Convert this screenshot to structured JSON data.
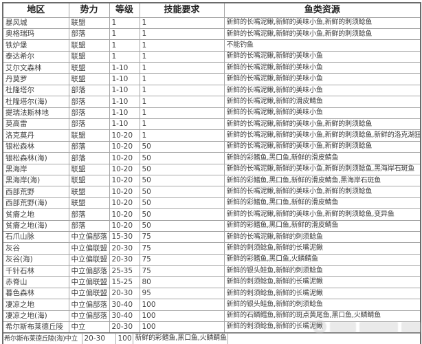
{
  "colors": {
    "background": "#ffffff",
    "grid_line": "#a6a6a6",
    "outer_border": "#6b6b6b",
    "header_text": "#1f1f1f",
    "body_text": "#3f3f3f",
    "watermark": "#c8c8c8"
  },
  "icons": {
    "watermark": "circular-site-logo-with-blurred-text"
  },
  "table": {
    "headers": [
      "地区",
      "势力",
      "等级",
      "技能要求",
      "鱼类资源"
    ],
    "rows": [
      {
        "region": "暴风城",
        "faction": "联盟",
        "level": "1",
        "skill": "1",
        "fish": "新鲜的长嘴泥鳅,新鲜的美味小鱼,新鲜的刺须鲶鱼"
      },
      {
        "region": "奥格瑞玛",
        "faction": "部落",
        "level": "1",
        "skill": "1",
        "fish": "新鲜的长嘴泥鳅,新鲜的美味小鱼,新鲜的刺须鲶鱼"
      },
      {
        "region": "铁炉堡",
        "faction": "联盟",
        "level": "1",
        "skill": "1",
        "fish": "不能钓鱼"
      },
      {
        "region": "泰达希尔",
        "faction": "联盟",
        "level": "1",
        "skill": "1",
        "fish": "新鲜的长嘴泥鳅,新鲜的美味小鱼"
      },
      {
        "region": "艾尔文森林",
        "faction": "联盟",
        "level": "1-10",
        "skill": "1",
        "fish": "新鲜的长嘴泥鳅,新鲜的美味小鱼"
      },
      {
        "region": "丹莫罗",
        "faction": "联盟",
        "level": "1-10",
        "skill": "1",
        "fish": "新鲜的长嘴泥鳅,新鲜的美味小鱼"
      },
      {
        "region": "杜隆塔尔",
        "faction": "部落",
        "level": "1-10",
        "skill": "1",
        "fish": "新鲜的长嘴泥鳅,新鲜的美味小鱼"
      },
      {
        "region": "杜隆塔尔(海)",
        "faction": "部落",
        "level": "1-10",
        "skill": "1",
        "fish": "新鲜的长嘴泥鳅,新鲜的滑皮鲭鱼"
      },
      {
        "region": "提瑞法斯林地",
        "faction": "部落",
        "level": "1-10",
        "skill": "1",
        "fish": "新鲜的长嘴泥鳅,新鲜的美味小鱼"
      },
      {
        "region": "莫高雷",
        "faction": "部落",
        "level": "1-10",
        "skill": "1",
        "fish": "新鲜的长嘴泥鳅,新鲜的美味小鱼,新鲜的刺须鲶鱼"
      },
      {
        "region": "洛克莫丹",
        "faction": "联盟",
        "level": "10-20",
        "skill": "1",
        "fish": "新鲜的长嘴泥鳅,新鲜的美味小鱼,新鲜的刺须鲶鱼,新鲜的洛克湖狂鱼"
      },
      {
        "region": "银松森林",
        "faction": "部落",
        "level": "10-20",
        "skill": "50",
        "fish": "新鲜的长嘴泥鳅,新鲜的美味小鱼,新鲜的刺须鲶鱼"
      },
      {
        "region": "银松森林(海)",
        "faction": "部落",
        "level": "10-20",
        "skill": "50",
        "fish": "新鲜的彩鳍鱼,黑口鱼,新鲜的滑皮鲭鱼"
      },
      {
        "region": "黑海岸",
        "faction": "联盟",
        "level": "10-20",
        "skill": "50",
        "fish": "新鲜的长嘴泥鳅,新鲜的美味小鱼,新鲜的刺须鲶鱼,黑海岸石斑鱼"
      },
      {
        "region": "黑海岸(海)",
        "faction": "联盟",
        "level": "10-20",
        "skill": "50",
        "fish": "新鲜的彩鳍鱼,黑口鱼,新鲜的滑皮鲭鱼,黑海岸石斑鱼"
      },
      {
        "region": "西部荒野",
        "faction": "联盟",
        "level": "10-20",
        "skill": "50",
        "fish": "新鲜的长嘴泥鳅,新鲜的美味小鱼,新鲜的刺须鲶鱼"
      },
      {
        "region": "西部荒野(海)",
        "faction": "联盟",
        "level": "10-20",
        "skill": "50",
        "fish": "新鲜的彩鳍鱼,黑口鱼,新鲜的滑皮鲭鱼"
      },
      {
        "region": "贫瘠之地",
        "faction": "部落",
        "level": "10-20",
        "skill": "50",
        "fish": "新鲜的长嘴泥鳅,新鲜的美味小鱼,新鲜的刺须鲶鱼,变异鱼"
      },
      {
        "region": "贫瘠之地(海)",
        "faction": "部落",
        "level": "10-20",
        "skill": "50",
        "fish": "新鲜的彩鳍鱼,黑口鱼,新鲜的滑皮鲭鱼"
      },
      {
        "region": "石爪山脉",
        "faction": "中立偏部落",
        "level": "15-30",
        "skill": "75",
        "fish": "新鲜的长嘴泥鳅,新鲜的刺须鲶鱼"
      },
      {
        "region": "灰谷",
        "faction": "中立偏联盟",
        "level": "20-30",
        "skill": "75",
        "fish": "新鲜的刺须鲶鱼,新鲜的长嘴泥鳅"
      },
      {
        "region": "灰谷(海)",
        "faction": "中立偏联盟",
        "level": "20-30",
        "skill": "75",
        "fish": "新鲜的彩鳍鱼,黑口鱼,火鳞鲭鱼"
      },
      {
        "region": "千针石林",
        "faction": "中立偏部落",
        "level": "25-35",
        "skill": "75",
        "fish": "新鲜的银头鲑鱼,新鲜的刺须鲶鱼"
      },
      {
        "region": "赤脊山",
        "faction": "中立偏联盟",
        "level": "15-25",
        "skill": "80",
        "fish": "新鲜的刺须鲶鱼,新鲜的长嘴泥鳅"
      },
      {
        "region": "暮色森林",
        "faction": "中立偏联盟",
        "level": "20-30",
        "skill": "95",
        "fish": "新鲜的刺须鲶鱼,新鲜的长嘴泥鳅"
      },
      {
        "region": "凄凉之地",
        "faction": "中立偏部落",
        "level": "30-40",
        "skill": "100",
        "fish": "新鲜的银头鲑鱼,新鲜的刺须鲶鱼"
      },
      {
        "region": "凄凉之地(海)",
        "faction": "中立偏部落",
        "level": "30-40",
        "skill": "100",
        "fish": "新鲜的石鳞鳕鱼,新鲜的斑点黄尾鱼,黑口鱼,火鳞鲭鱼"
      },
      {
        "region": "希尔斯布莱德丘陵",
        "faction": "中立",
        "level": "20-30",
        "skill": "100",
        "fish": "新鲜的刺须鲶鱼,新鲜的长嘴泥鳅"
      }
    ]
  },
  "glitch_row": {
    "cells": [
      "希尔斯布莱德丘陵(海)中立",
      "20-30",
      "100",
      "新鲜的彩鳍鱼,黑口鱼,火鳞鲭鱼",
      ""
    ]
  }
}
